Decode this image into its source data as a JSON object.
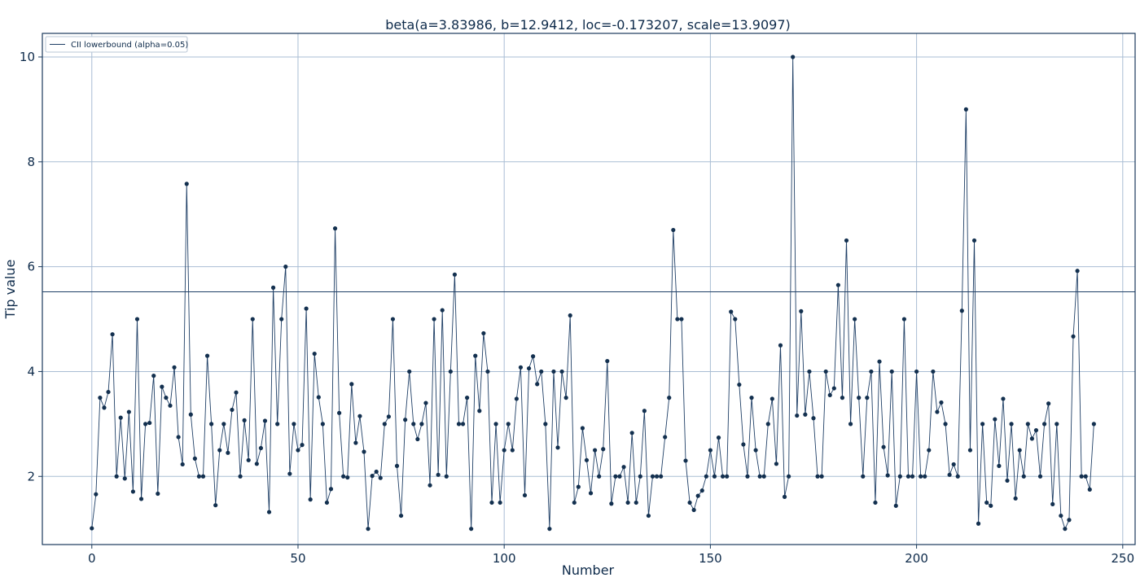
{
  "chart_data": {
    "type": "line",
    "title": "beta(a=3.83986, b=12.9412, loc=-0.173207, scale=13.9097)",
    "xlabel": "Number",
    "ylabel": "Tip value",
    "xlim": [
      -12,
      253
    ],
    "ylim": [
      0.7,
      10.45
    ],
    "x_ticks": [
      0,
      50,
      100,
      150,
      200,
      250
    ],
    "y_ticks": [
      2,
      4,
      6,
      8,
      10
    ],
    "grid": true,
    "legend_position": "top-left",
    "series": [
      {
        "name": "",
        "style": "line-markers",
        "x_start": 0,
        "values": [
          1.01,
          1.66,
          3.5,
          3.31,
          3.61,
          4.71,
          2.0,
          3.12,
          1.96,
          3.23,
          1.71,
          5.0,
          1.57,
          3.0,
          3.02,
          3.92,
          1.67,
          3.71,
          3.5,
          3.35,
          4.08,
          2.75,
          2.23,
          7.58,
          3.18,
          2.34,
          2.0,
          2.0,
          4.3,
          3.0,
          1.45,
          2.5,
          3.0,
          2.45,
          3.27,
          3.6,
          2.0,
          3.07,
          2.31,
          5.0,
          2.24,
          2.54,
          3.06,
          1.32,
          5.6,
          3.0,
          5.0,
          6.0,
          2.05,
          3.0,
          2.5,
          2.6,
          5.2,
          1.56,
          4.34,
          3.51,
          3.0,
          1.5,
          1.76,
          6.73,
          3.21,
          2.0,
          1.98,
          3.76,
          2.64,
          3.15,
          2.47,
          1.0,
          2.01,
          2.09,
          1.97,
          3.0,
          3.14,
          5.0,
          2.2,
          1.25,
          3.08,
          4.0,
          3.0,
          2.71,
          3.0,
          3.4,
          1.83,
          5.0,
          2.03,
          5.17,
          2.0,
          4.0,
          5.85,
          3.0,
          3.0,
          3.5,
          1.0,
          4.3,
          3.25,
          4.73,
          4.0,
          1.5,
          3.0,
          1.5,
          2.5,
          3.0,
          2.5,
          3.48,
          4.08,
          1.64,
          4.06,
          4.29,
          3.76,
          4.0,
          3.0,
          1.0,
          4.0,
          2.55,
          4.0,
          3.5,
          5.07,
          1.5,
          1.8,
          2.92,
          2.31,
          1.68,
          2.5,
          2.0,
          2.52,
          4.2,
          1.48,
          2.0,
          2.0,
          2.18,
          1.5,
          2.83,
          1.5,
          2.0,
          3.25,
          1.25,
          2.0,
          2.0,
          2.0,
          2.75,
          3.5,
          6.7,
          5.0,
          5.0,
          2.3,
          1.5,
          1.36,
          1.63,
          1.73,
          2.0,
          2.5,
          2.0,
          2.74,
          2.0,
          2.0,
          5.14,
          5.0,
          3.75,
          2.61,
          2.0,
          3.5,
          2.5,
          2.0,
          2.0,
          3.0,
          3.48,
          2.24,
          4.5,
          1.61,
          2.0,
          10.0,
          3.16,
          5.15,
          3.18,
          4.0,
          3.11,
          2.0,
          2.0,
          4.0,
          3.55,
          3.68,
          5.65,
          3.5,
          6.5,
          3.0,
          5.0,
          3.5,
          2.0,
          3.5,
          4.0,
          1.5,
          4.19,
          2.56,
          2.02,
          4.0,
          1.44,
          2.0,
          5.0,
          2.0,
          2.0,
          4.0,
          2.0,
          2.0,
          2.5,
          4.0,
          3.23,
          3.41,
          3.0,
          2.03,
          2.23,
          2.0,
          5.16,
          9.0,
          2.5,
          6.5,
          1.1,
          3.0,
          1.5,
          1.44,
          3.09,
          2.2,
          3.48,
          1.92,
          3.0,
          1.58,
          2.5,
          2.0,
          3.0,
          2.72,
          2.88,
          2.0,
          3.0,
          3.39,
          1.47,
          3.0,
          1.25,
          1.0,
          1.17,
          4.67,
          5.92,
          2.0,
          2.0,
          1.75,
          3.0
        ]
      },
      {
        "name": "CII lowerbound (alpha=0.05)",
        "style": "hline",
        "y": 5.52
      }
    ]
  },
  "colors": {
    "series": "#1f3f66",
    "marker": "#13304f",
    "grid": "#a9bdd4",
    "axes": "#1a3a5c",
    "text": "#0d2a4a"
  }
}
